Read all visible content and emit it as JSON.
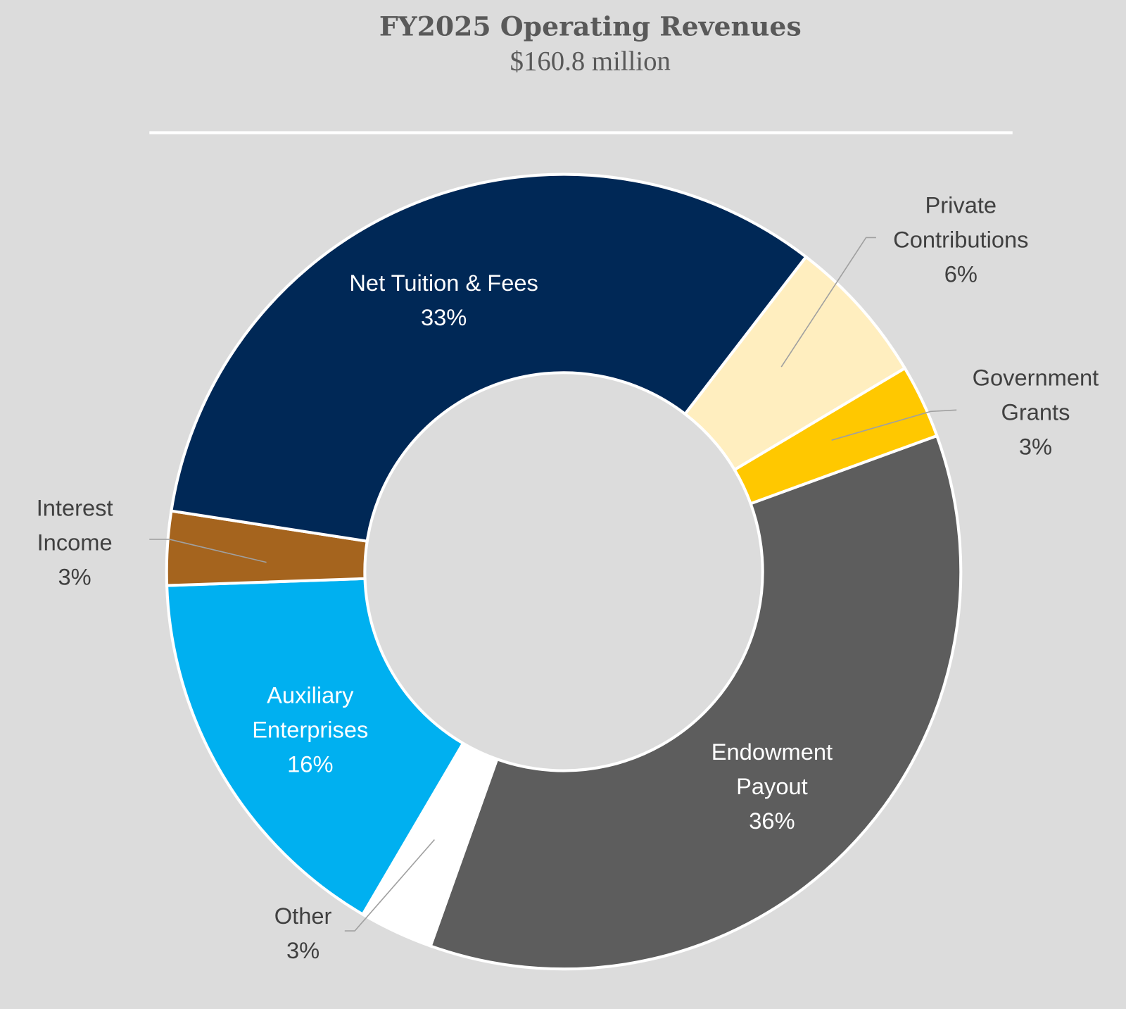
{
  "chart_data": {
    "type": "pie",
    "variant": "donut",
    "title": "FY2025 Operating Revenues",
    "subtitle": "$160.8 million",
    "unit": "%",
    "slices": [
      {
        "label": [
          "Endowment",
          "Payout"
        ],
        "value": 36,
        "value_label": "36%",
        "color": "#5d5d5d",
        "label_color": "#ffffff"
      },
      {
        "label": [
          "Other"
        ],
        "value": 3,
        "value_label": "3%",
        "color": "#ffffff",
        "label_color": "#404040"
      },
      {
        "label": [
          "Auxiliary",
          "Enterprises"
        ],
        "value": 16,
        "value_label": "16%",
        "color": "#00b0f0",
        "label_color": "#ffffff"
      },
      {
        "label": [
          "Interest",
          "Income"
        ],
        "value": 3,
        "value_label": "3%",
        "color": "#a5641e",
        "label_color": "#404040"
      },
      {
        "label": [
          "Net Tuition & Fees"
        ],
        "value": 33,
        "value_label": "33%",
        "color": "#002856",
        "label_color": "#ffffff"
      },
      {
        "label": [
          "Private",
          "Contributions"
        ],
        "value": 6,
        "value_label": "6%",
        "color": "#ffeebf",
        "label_color": "#404040"
      },
      {
        "label": [
          "Government",
          "Grants"
        ],
        "value": 3,
        "value_label": "3%",
        "color": "#ffc800",
        "label_color": "#404040"
      }
    ],
    "background": "#dcdcdc",
    "legend": "none"
  }
}
